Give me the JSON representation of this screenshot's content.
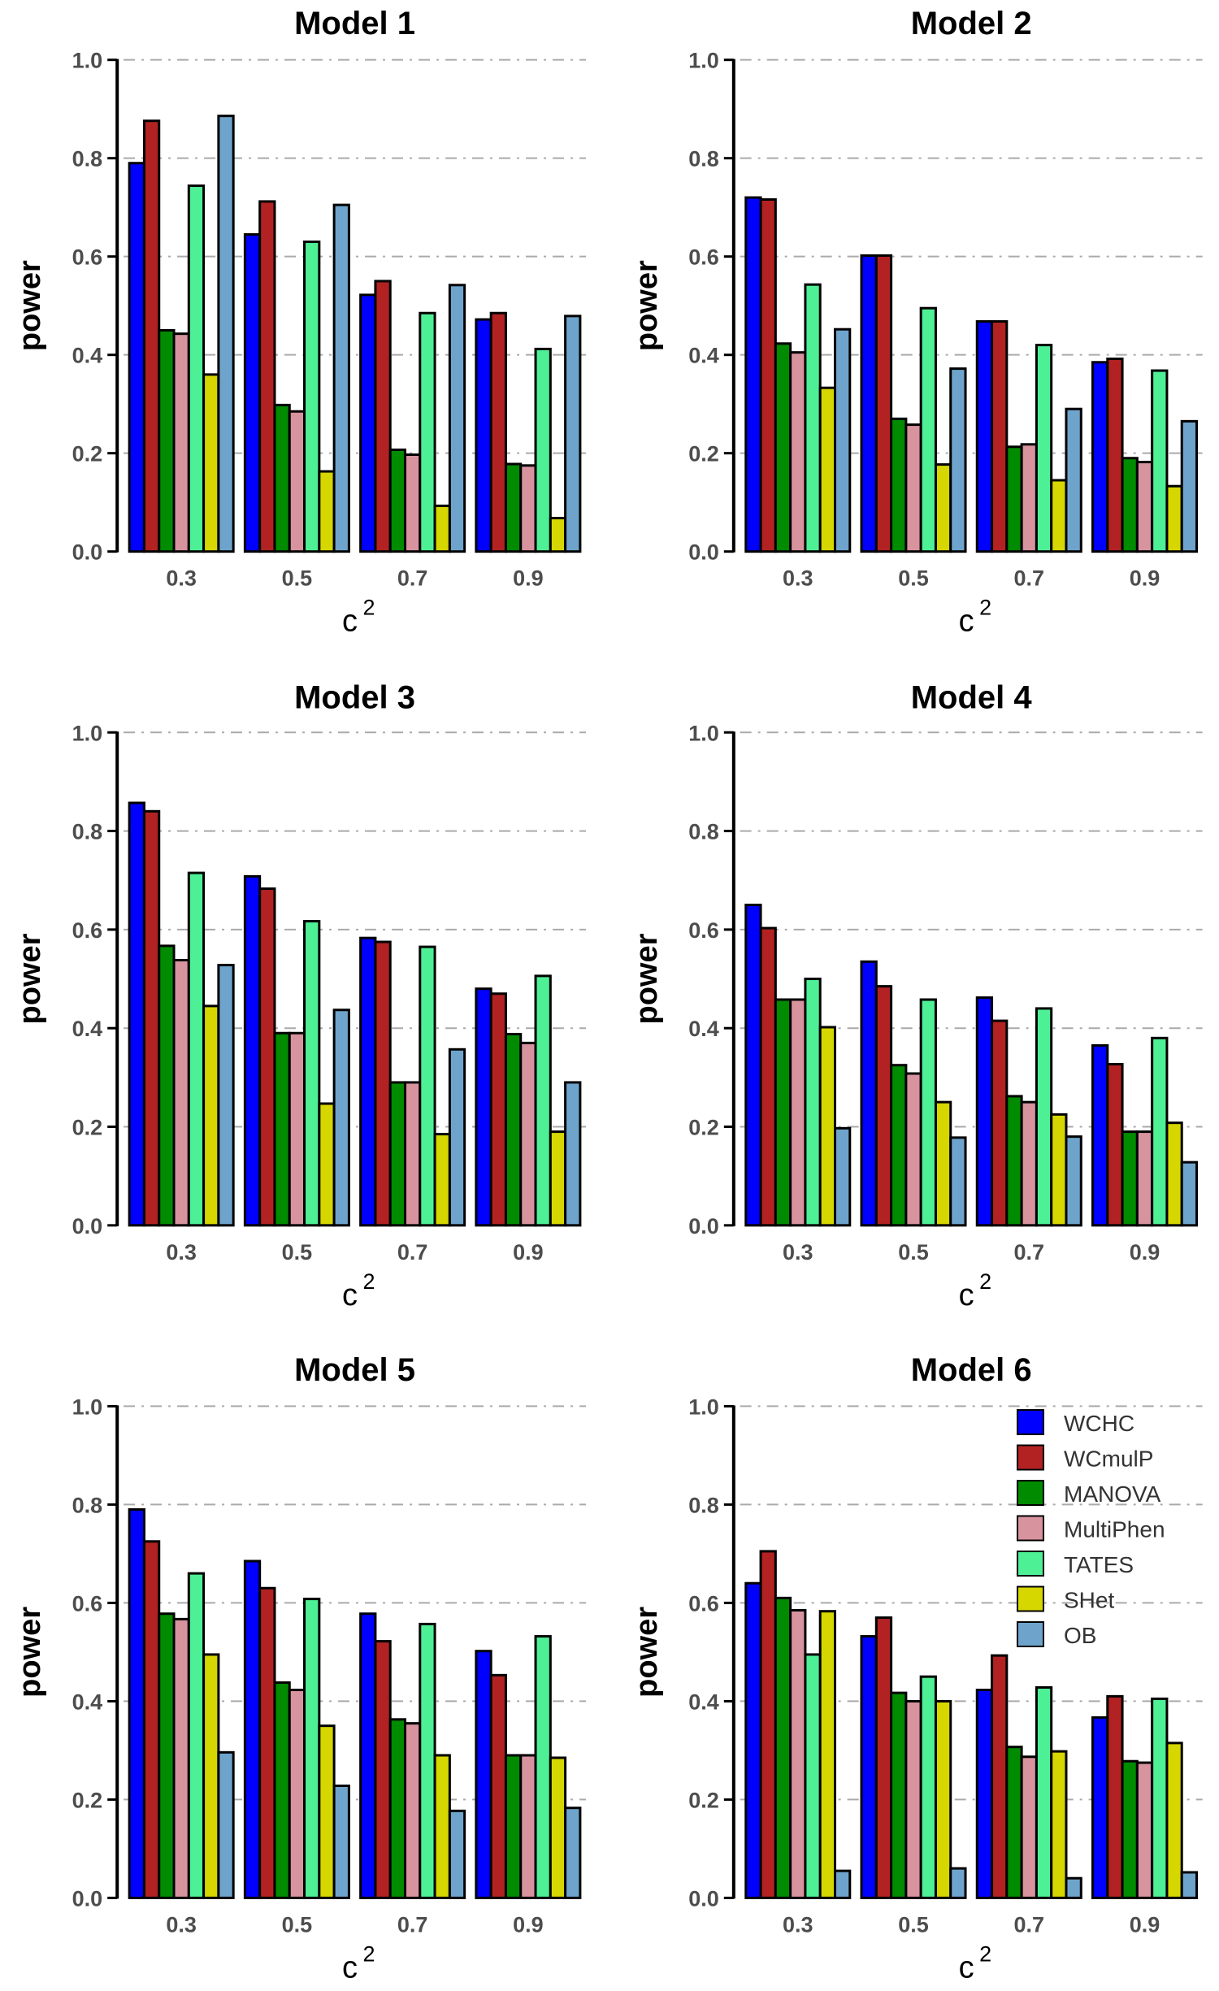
{
  "chart_data": [
    {
      "type": "bar",
      "title": "Model 1",
      "xlabel": "c",
      "xlabel_sup": "2",
      "ylabel": "power",
      "ylim": [
        0,
        1
      ],
      "categories": [
        "0.3",
        "0.5",
        "0.7",
        "0.9"
      ],
      "series": [
        {
          "name": "WCHC",
          "values": [
            0.79,
            0.645,
            0.522,
            0.472
          ]
        },
        {
          "name": "WCmulP",
          "values": [
            0.876,
            0.712,
            0.55,
            0.485
          ]
        },
        {
          "name": "MANOVA",
          "values": [
            0.45,
            0.298,
            0.207,
            0.178
          ]
        },
        {
          "name": "MultiPhen",
          "values": [
            0.443,
            0.285,
            0.197,
            0.175
          ]
        },
        {
          "name": "TATES",
          "values": [
            0.744,
            0.63,
            0.485,
            0.412
          ]
        },
        {
          "name": "SHet",
          "values": [
            0.36,
            0.163,
            0.093,
            0.068
          ]
        },
        {
          "name": "OB",
          "values": [
            0.886,
            0.705,
            0.542,
            0.479
          ]
        }
      ]
    },
    {
      "type": "bar",
      "title": "Model 2",
      "xlabel": "c",
      "xlabel_sup": "2",
      "ylabel": "power",
      "ylim": [
        0,
        1
      ],
      "categories": [
        "0.3",
        "0.5",
        "0.7",
        "0.9"
      ],
      "series": [
        {
          "name": "WCHC",
          "values": [
            0.72,
            0.602,
            0.468,
            0.385
          ]
        },
        {
          "name": "WCmulP",
          "values": [
            0.716,
            0.602,
            0.468,
            0.392
          ]
        },
        {
          "name": "MANOVA",
          "values": [
            0.423,
            0.27,
            0.213,
            0.19
          ]
        },
        {
          "name": "MultiPhen",
          "values": [
            0.405,
            0.258,
            0.218,
            0.182
          ]
        },
        {
          "name": "TATES",
          "values": [
            0.543,
            0.495,
            0.42,
            0.368
          ]
        },
        {
          "name": "SHet",
          "values": [
            0.333,
            0.177,
            0.145,
            0.133
          ]
        },
        {
          "name": "OB",
          "values": [
            0.452,
            0.372,
            0.29,
            0.265
          ]
        }
      ]
    },
    {
      "type": "bar",
      "title": "Model 3",
      "xlabel": "c",
      "xlabel_sup": "2",
      "ylabel": "power",
      "ylim": [
        0,
        1
      ],
      "categories": [
        "0.3",
        "0.5",
        "0.7",
        "0.9"
      ],
      "series": [
        {
          "name": "WCHC",
          "values": [
            0.857,
            0.708,
            0.583,
            0.48
          ]
        },
        {
          "name": "WCmulP",
          "values": [
            0.84,
            0.683,
            0.575,
            0.47
          ]
        },
        {
          "name": "MANOVA",
          "values": [
            0.567,
            0.39,
            0.29,
            0.388
          ]
        },
        {
          "name": "MultiPhen",
          "values": [
            0.538,
            0.39,
            0.29,
            0.37
          ]
        },
        {
          "name": "TATES",
          "values": [
            0.715,
            0.617,
            0.565,
            0.506
          ]
        },
        {
          "name": "SHet",
          "values": [
            0.445,
            0.247,
            0.185,
            0.19
          ]
        },
        {
          "name": "OB",
          "values": [
            0.528,
            0.437,
            0.357,
            0.29
          ]
        }
      ]
    },
    {
      "type": "bar",
      "title": "Model 4",
      "xlabel": "c",
      "xlabel_sup": "2",
      "ylabel": "power",
      "ylim": [
        0,
        1
      ],
      "categories": [
        "0.3",
        "0.5",
        "0.7",
        "0.9"
      ],
      "series": [
        {
          "name": "WCHC",
          "values": [
            0.65,
            0.535,
            0.462,
            0.365
          ]
        },
        {
          "name": "WCmulP",
          "values": [
            0.603,
            0.485,
            0.415,
            0.327
          ]
        },
        {
          "name": "MANOVA",
          "values": [
            0.458,
            0.325,
            0.262,
            0.19
          ]
        },
        {
          "name": "MultiPhen",
          "values": [
            0.458,
            0.308,
            0.25,
            0.19
          ]
        },
        {
          "name": "TATES",
          "values": [
            0.5,
            0.458,
            0.44,
            0.38
          ]
        },
        {
          "name": "SHet",
          "values": [
            0.402,
            0.25,
            0.225,
            0.208
          ]
        },
        {
          "name": "OB",
          "values": [
            0.197,
            0.178,
            0.18,
            0.128
          ]
        }
      ]
    },
    {
      "type": "bar",
      "title": "Model 5",
      "xlabel": "c",
      "xlabel_sup": "2",
      "ylabel": "power",
      "ylim": [
        0,
        1
      ],
      "categories": [
        "0.3",
        "0.5",
        "0.7",
        "0.9"
      ],
      "series": [
        {
          "name": "WCHC",
          "values": [
            0.79,
            0.685,
            0.578,
            0.502
          ]
        },
        {
          "name": "WCmulP",
          "values": [
            0.725,
            0.63,
            0.522,
            0.453
          ]
        },
        {
          "name": "MANOVA",
          "values": [
            0.578,
            0.438,
            0.363,
            0.29
          ]
        },
        {
          "name": "MultiPhen",
          "values": [
            0.567,
            0.423,
            0.355,
            0.29
          ]
        },
        {
          "name": "TATES",
          "values": [
            0.66,
            0.608,
            0.557,
            0.532
          ]
        },
        {
          "name": "SHet",
          "values": [
            0.495,
            0.35,
            0.29,
            0.285
          ]
        },
        {
          "name": "OB",
          "values": [
            0.296,
            0.228,
            0.177,
            0.183
          ]
        }
      ]
    },
    {
      "type": "bar",
      "title": "Model 6",
      "xlabel": "c",
      "xlabel_sup": "2",
      "ylabel": "power",
      "ylim": [
        0,
        1
      ],
      "categories": [
        "0.3",
        "0.5",
        "0.7",
        "0.9"
      ],
      "legend": "top-right",
      "series": [
        {
          "name": "WCHC",
          "values": [
            0.64,
            0.532,
            0.423,
            0.367
          ]
        },
        {
          "name": "WCmulP",
          "values": [
            0.705,
            0.57,
            0.493,
            0.41
          ]
        },
        {
          "name": "MANOVA",
          "values": [
            0.61,
            0.417,
            0.307,
            0.278
          ]
        },
        {
          "name": "MultiPhen",
          "values": [
            0.585,
            0.4,
            0.287,
            0.275
          ]
        },
        {
          "name": "TATES",
          "values": [
            0.495,
            0.45,
            0.428,
            0.405
          ]
        },
        {
          "name": "SHet",
          "values": [
            0.583,
            0.4,
            0.298,
            0.315
          ]
        },
        {
          "name": "OB",
          "values": [
            0.055,
            0.06,
            0.04,
            0.052
          ]
        }
      ]
    }
  ],
  "colors": {
    "WCHC": "#0000ff",
    "WCmulP": "#b22222",
    "MANOVA": "#008b00",
    "MultiPhen": "#d7939e",
    "TATES": "#4ef095",
    "SHet": "#d6d600",
    "OB": "#6ea4cc"
  },
  "yticks": [
    "0.0",
    "0.2",
    "0.4",
    "0.6",
    "0.8",
    "1.0"
  ],
  "legend": [
    "WCHC",
    "WCmulP",
    "MANOVA",
    "MultiPhen",
    "TATES",
    "SHet",
    "OB"
  ]
}
